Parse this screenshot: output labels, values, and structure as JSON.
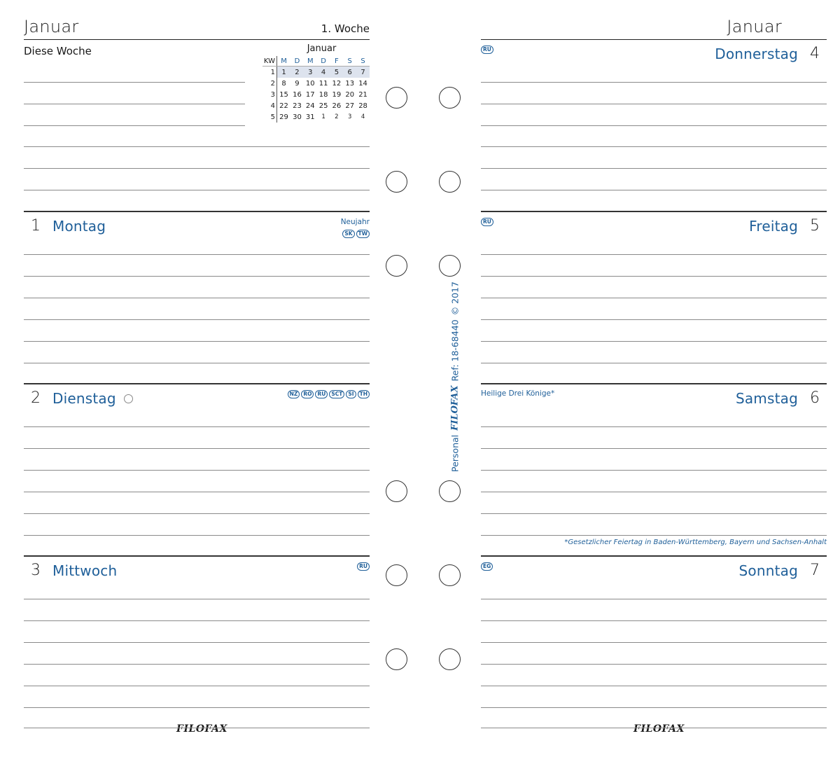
{
  "left": {
    "month": "Januar",
    "week": "1. Woche",
    "this_week": "Diese Woche",
    "mini_calendar": {
      "title": "Januar",
      "kw_label": "KW",
      "weekday_headers": [
        "M",
        "D",
        "M",
        "D",
        "F",
        "S",
        "S"
      ],
      "rows": [
        {
          "kw": "1",
          "days": [
            "1",
            "2",
            "3",
            "4",
            "5",
            "6",
            "7"
          ]
        },
        {
          "kw": "2",
          "days": [
            "8",
            "9",
            "10",
            "11",
            "12",
            "13",
            "14"
          ]
        },
        {
          "kw": "3",
          "days": [
            "15",
            "16",
            "17",
            "18",
            "19",
            "20",
            "21"
          ]
        },
        {
          "kw": "4",
          "days": [
            "22",
            "23",
            "24",
            "25",
            "26",
            "27",
            "28"
          ]
        },
        {
          "kw": "5",
          "days": [
            "29",
            "30",
            "31",
            "1",
            "2",
            "3",
            "4"
          ]
        }
      ],
      "next_month_start_index": 3
    },
    "days": [
      {
        "num": "1",
        "name": "Montag",
        "holiday": "Neujahr",
        "codes": [
          "SK",
          "TW"
        ]
      },
      {
        "num": "2",
        "name": "Dienstag",
        "codes": [
          "NZ",
          "RO",
          "RU",
          "SCT",
          "SI",
          "TH"
        ],
        "moon_icon": "new-moon-icon"
      },
      {
        "num": "3",
        "name": "Mittwoch",
        "codes": [
          "RU"
        ]
      }
    ],
    "footer_brand": "FILOFAX"
  },
  "right": {
    "month": "Januar",
    "days": [
      {
        "num": "4",
        "name": "Donnerstag",
        "codes": [
          "RU"
        ]
      },
      {
        "num": "5",
        "name": "Freitag",
        "codes": [
          "RU"
        ]
      },
      {
        "num": "6",
        "name": "Samstag",
        "holiday": "Heilige Drei Könige*",
        "footnote": "*Gesetzlicher Feiertag in Baden-Württemberg, Bayern und Sachsen-Anhalt"
      },
      {
        "num": "7",
        "name": "Sonntag",
        "codes": [
          "EG"
        ]
      }
    ],
    "footer_brand": "FILOFAX"
  },
  "spine": {
    "format": "Personal",
    "brand": "FILOFAX",
    "ref": "Ref: 18-68440",
    "copyright": "© 2017"
  },
  "colors": {
    "accent": "#1f5f99",
    "ink": "#1a1a1a",
    "rule": "#8a8a8a",
    "highlight": "#dde3ee"
  }
}
